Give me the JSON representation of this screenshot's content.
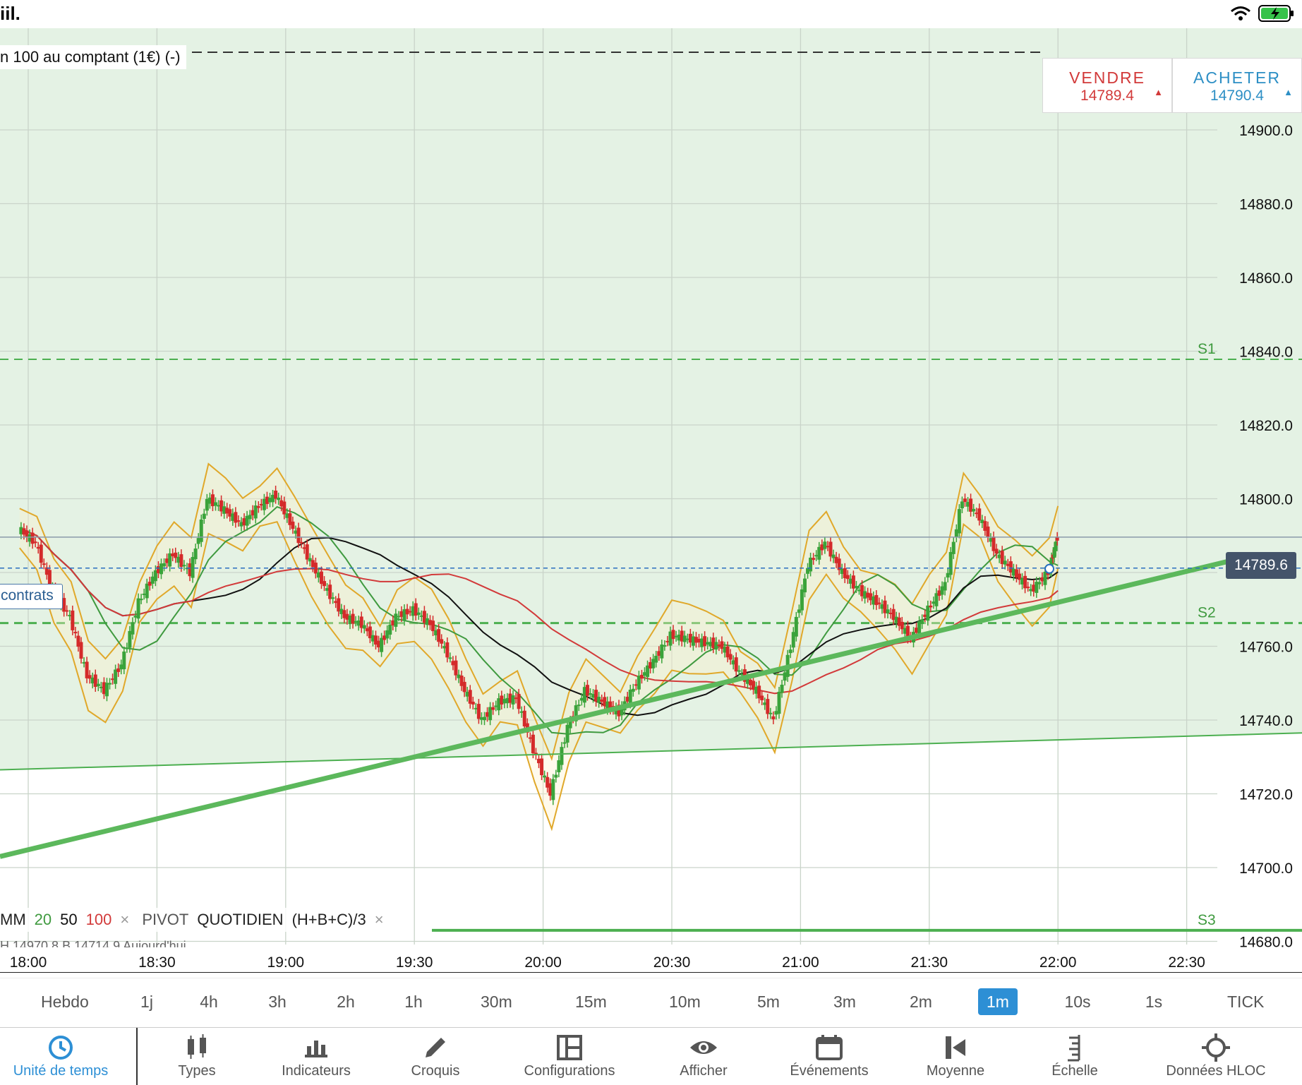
{
  "status_bar": {
    "carrier": "iil."
  },
  "instrument": {
    "label": "n 100 au comptant (1€) (-)"
  },
  "quotes": {
    "sell": {
      "label": "VENDRE",
      "price": "14789.4",
      "color": "#d23a3a"
    },
    "buy": {
      "label": "ACHETER",
      "price": "14790.4",
      "color": "#2d8fc5"
    }
  },
  "position_tag": "contrats",
  "current_price": "14789.6",
  "pivot_labels": {
    "s1": "S1",
    "s2": "S2",
    "s3": "S3"
  },
  "legend": {
    "mm": "MM",
    "p20": "20",
    "p50": "50",
    "p100": "100",
    "pivot": "PIVOT",
    "period": "QUOTIDIEN",
    "formula": "(H+B+C)/3",
    "close": "×",
    "sub": "H 14970.8   B 14714.9   Aujourd'hui"
  },
  "timeframes": [
    {
      "label": "Hebdo",
      "active": false
    },
    {
      "label": "1j",
      "active": false
    },
    {
      "label": "4h",
      "active": false
    },
    {
      "label": "3h",
      "active": false
    },
    {
      "label": "2h",
      "active": false
    },
    {
      "label": "1h",
      "active": false
    },
    {
      "label": "30m",
      "active": false
    },
    {
      "label": "15m",
      "active": false
    },
    {
      "label": "10m",
      "active": false
    },
    {
      "label": "5m",
      "active": false
    },
    {
      "label": "3m",
      "active": false
    },
    {
      "label": "2m",
      "active": false
    },
    {
      "label": "1m",
      "active": true
    },
    {
      "label": "10s",
      "active": false
    },
    {
      "label": "1s",
      "active": false
    },
    {
      "label": "TICK",
      "active": false
    }
  ],
  "toolbar": [
    {
      "label": "Unité de temps",
      "icon": "clock-icon",
      "active": true
    },
    {
      "label": "Types",
      "icon": "candles-icon",
      "active": false
    },
    {
      "label": "Indicateurs",
      "icon": "bar-chart-icon",
      "active": false
    },
    {
      "label": "Croquis",
      "icon": "pencil-icon",
      "active": false
    },
    {
      "label": "Configurations",
      "icon": "layout-icon",
      "active": false
    },
    {
      "label": "Afficher",
      "icon": "eye-icon",
      "active": false
    },
    {
      "label": "Événements",
      "icon": "calendar-icon",
      "active": false
    },
    {
      "label": "Moyenne",
      "icon": "average-icon",
      "active": false
    },
    {
      "label": "Échelle",
      "icon": "scale-icon",
      "active": false
    },
    {
      "label": "Données HLOC",
      "icon": "crosshair-icon",
      "active": false
    }
  ],
  "chart_data": {
    "type": "candlestick",
    "x_ticks": [
      "18:00",
      "18:30",
      "19:00",
      "19:30",
      "20:00",
      "20:30",
      "21:00",
      "21:30",
      "22:00",
      "22:30"
    ],
    "y_ticks": [
      14900.0,
      14880.0,
      14860.0,
      14840.0,
      14820.0,
      14800.0,
      14780.0,
      14760.0,
      14740.0,
      14720.0,
      14700.0,
      14680.0
    ],
    "y_tick_labels": [
      "14900.0",
      "14880.0",
      "14860.0",
      "14840.0",
      "14820.0",
      "14800.0",
      "14780.0",
      "14760.0",
      "14740.0",
      "14720.0",
      "14700.0",
      "14680.0"
    ],
    "ylim": [
      14680,
      14925
    ],
    "close_trace": [
      [
        "17:58",
        14792
      ],
      [
        "18:02",
        14788
      ],
      [
        "18:06",
        14775
      ],
      [
        "18:10",
        14768
      ],
      [
        "18:14",
        14752
      ],
      [
        "18:18",
        14748
      ],
      [
        "18:22",
        14755
      ],
      [
        "18:26",
        14772
      ],
      [
        "18:30",
        14780
      ],
      [
        "18:34",
        14785
      ],
      [
        "18:38",
        14780
      ],
      [
        "18:42",
        14800
      ],
      [
        "18:46",
        14797
      ],
      [
        "18:50",
        14793
      ],
      [
        "18:54",
        14798
      ],
      [
        "18:58",
        14801
      ],
      [
        "19:02",
        14792
      ],
      [
        "19:06",
        14783
      ],
      [
        "19:10",
        14775
      ],
      [
        "19:14",
        14768
      ],
      [
        "19:18",
        14766
      ],
      [
        "19:22",
        14760
      ],
      [
        "19:26",
        14768
      ],
      [
        "19:30",
        14770
      ],
      [
        "19:34",
        14766
      ],
      [
        "19:38",
        14758
      ],
      [
        "19:42",
        14748
      ],
      [
        "19:46",
        14740
      ],
      [
        "19:50",
        14745
      ],
      [
        "19:54",
        14746
      ],
      [
        "19:58",
        14732
      ],
      [
        "20:02",
        14720
      ],
      [
        "20:06",
        14738
      ],
      [
        "20:10",
        14748
      ],
      [
        "20:14",
        14745
      ],
      [
        "20:18",
        14742
      ],
      [
        "20:22",
        14750
      ],
      [
        "20:26",
        14756
      ],
      [
        "20:30",
        14763
      ],
      [
        "20:34",
        14762
      ],
      [
        "20:38",
        14761
      ],
      [
        "20:42",
        14760
      ],
      [
        "20:46",
        14753
      ],
      [
        "20:50",
        14748
      ],
      [
        "20:54",
        14740
      ],
      [
        "20:58",
        14760
      ],
      [
        "21:02",
        14782
      ],
      [
        "21:06",
        14788
      ],
      [
        "21:10",
        14780
      ],
      [
        "21:14",
        14775
      ],
      [
        "21:18",
        14772
      ],
      [
        "21:22",
        14768
      ],
      [
        "21:26",
        14762
      ],
      [
        "21:30",
        14770
      ],
      [
        "21:34",
        14777
      ],
      [
        "21:38",
        14800
      ],
      [
        "21:42",
        14795
      ],
      [
        "21:46",
        14785
      ],
      [
        "21:50",
        14780
      ],
      [
        "21:54",
        14775
      ],
      [
        "21:58",
        14780
      ],
      [
        "22:00",
        14789.6
      ]
    ],
    "pivot_levels": {
      "S1": 14837.8,
      "S2": 14766.3,
      "S3": 14683
    },
    "series": [
      {
        "name": "20",
        "color": "#3f9a3f"
      },
      {
        "name": "50",
        "color": "#111111"
      },
      {
        "name": "100",
        "color": "#d23a3a"
      }
    ],
    "grid": true
  }
}
